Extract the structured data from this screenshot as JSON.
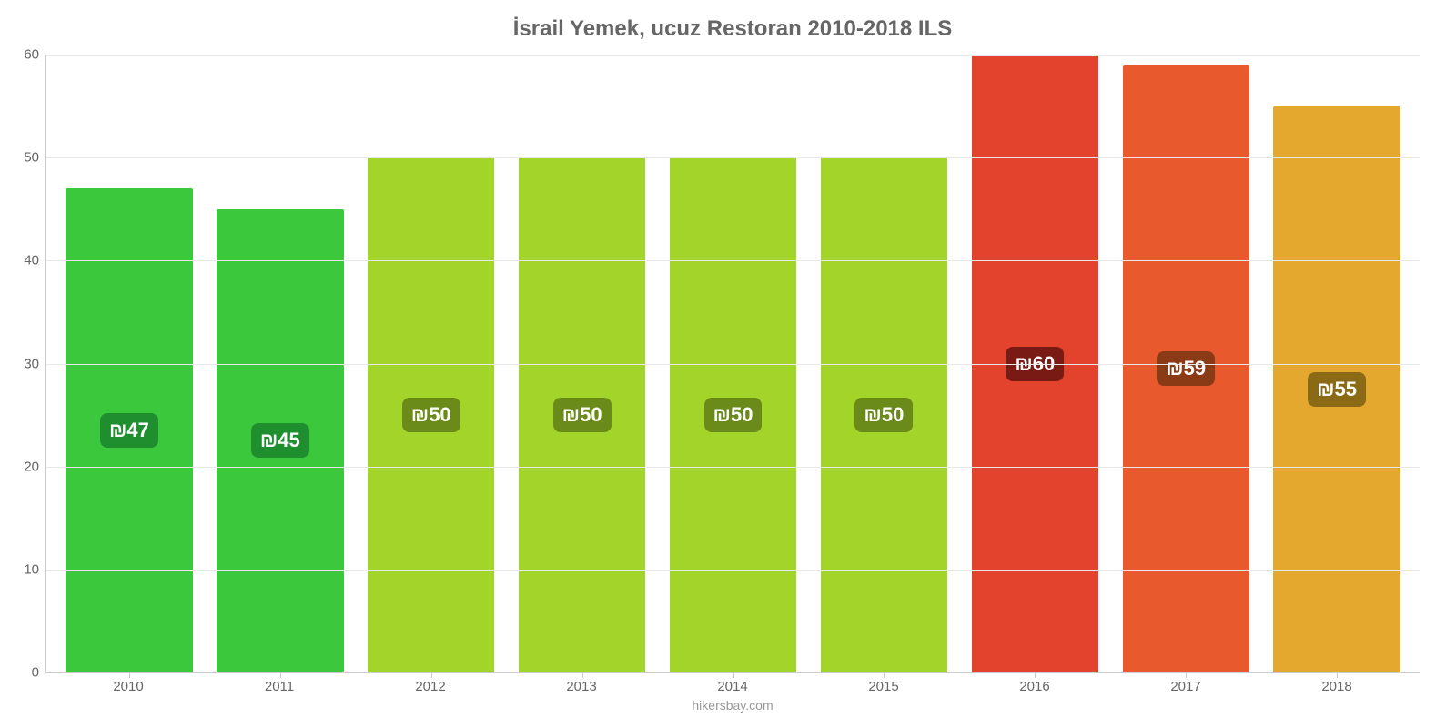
{
  "chart": {
    "type": "bar",
    "title": "İsrail Yemek, ucuz Restoran 2010-2018 ILS",
    "title_color": "#666666",
    "title_fontsize": 24,
    "background_color": "#ffffff",
    "grid_color": "#e8e8e8",
    "axis_color": "#cccccc",
    "tick_label_color": "#666666",
    "tick_fontsize": 15,
    "ylim": [
      0,
      60
    ],
    "ytick_step": 10,
    "yticks": [
      0,
      10,
      20,
      30,
      40,
      50,
      60
    ],
    "categories": [
      "2010",
      "2011",
      "2012",
      "2013",
      "2014",
      "2015",
      "2016",
      "2017",
      "2018"
    ],
    "values": [
      47,
      45,
      50,
      50,
      50,
      50,
      60,
      59,
      55
    ],
    "value_labels": [
      "₪47",
      "₪45",
      "₪50",
      "₪50",
      "₪50",
      "₪50",
      "₪60",
      "₪59",
      "₪55"
    ],
    "bar_colors": [
      "#3cc83c",
      "#3cc83c",
      "#a2d42a",
      "#a2d42a",
      "#a2d42a",
      "#a2d42a",
      "#e3422d",
      "#e85a2d",
      "#e3a82d"
    ],
    "badge_colors": [
      "#1f8e2f",
      "#1f8e2f",
      "#6a8a1a",
      "#6a8a1a",
      "#6a8a1a",
      "#6a8a1a",
      "#7a1a14",
      "#8a3a14",
      "#8a6a14"
    ],
    "badge_text_color": "#ffffff",
    "badge_fontsize": 22,
    "bar_width_ratio": 0.84,
    "credit": "hikersbay.com",
    "credit_color": "#999999"
  }
}
